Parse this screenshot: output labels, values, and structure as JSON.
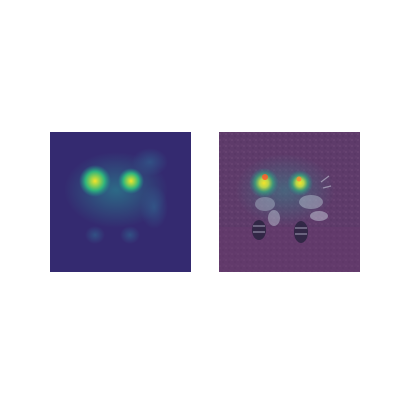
{
  "figure": {
    "panels": [
      {
        "id": "heatmap",
        "kind": "attention-heatmap",
        "colormap": "viridis",
        "background": "#3a1f66"
      },
      {
        "id": "overlay",
        "kind": "heatmap-overlay-on-photo",
        "colormap": "viridis",
        "background": "#5c3868",
        "subject": "two bees"
      }
    ],
    "colors": {
      "low": "#3b1c6a",
      "mid": "#2a7f8e",
      "high": "#f5e32a",
      "overlay_tint": "#6a3f6e"
    }
  }
}
